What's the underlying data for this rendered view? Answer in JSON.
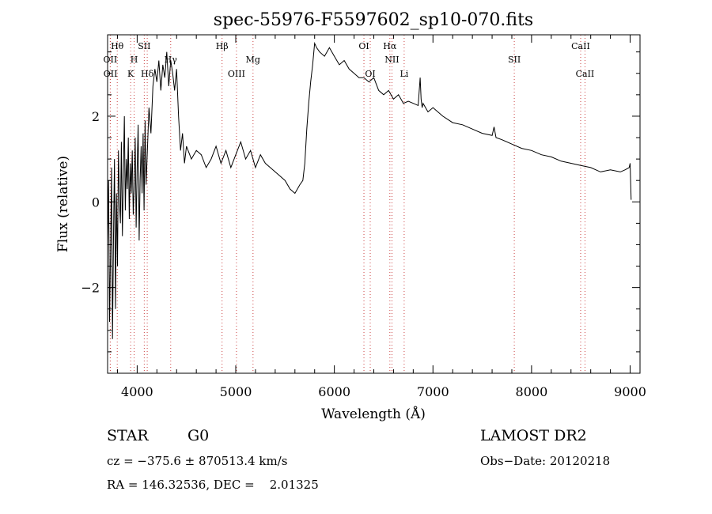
{
  "chart_data": {
    "type": "line",
    "title": "spec-55976-F5597602_sp10-070.fits",
    "xlabel": "Wavelength (Å)",
    "ylabel": "Flux (relative)",
    "xlim": [
      3700,
      9100
    ],
    "ylim": [
      -4.0,
      3.9
    ],
    "x_ticks": [
      4000,
      5000,
      6000,
      7000,
      8000,
      9000
    ],
    "y_ticks": [
      -2,
      0,
      2
    ],
    "grid": false,
    "legend": "none",
    "line_color": "#000000",
    "marker_color": "#cc4444",
    "spectral_lines": [
      {
        "label": "Hθ",
        "wavelength": 3798,
        "row": 0
      },
      {
        "label": "OII",
        "wavelength": 3727,
        "row": 1
      },
      {
        "label": "OII",
        "wavelength": 3729,
        "row": 2
      },
      {
        "label": "SII",
        "wavelength": 4072,
        "row": 0
      },
      {
        "label": "H",
        "wavelength": 3969,
        "row": 1
      },
      {
        "label": "K",
        "wavelength": 3934,
        "row": 2
      },
      {
        "label": "Hδ",
        "wavelength": 4102,
        "row": 2
      },
      {
        "label": "Hγ",
        "wavelength": 4340,
        "row": 1
      },
      {
        "label": "Hβ",
        "wavelength": 4861,
        "row": 0
      },
      {
        "label": "Mg",
        "wavelength": 5175,
        "row": 1
      },
      {
        "label": "OIII",
        "wavelength": 5007,
        "row": 2
      },
      {
        "label": "OI",
        "wavelength": 6300,
        "row": 0
      },
      {
        "label": "OI",
        "wavelength": 6364,
        "row": 2
      },
      {
        "label": "Hα",
        "wavelength": 6563,
        "row": 0
      },
      {
        "label": "NII",
        "wavelength": 6584,
        "row": 1
      },
      {
        "label": "Li",
        "wavelength": 6708,
        "row": 2
      },
      {
        "label": "SII",
        "wavelength": 7825,
        "row": 1
      },
      {
        "label": "CaII",
        "wavelength": 8498,
        "row": 0
      },
      {
        "label": "CaII",
        "wavelength": 8542,
        "row": 2
      }
    ],
    "series": [
      {
        "x": [
          3700,
          3710,
          3720,
          3730,
          3740,
          3750,
          3760,
          3770,
          3780,
          3790,
          3800,
          3810,
          3820,
          3830,
          3840,
          3850,
          3860,
          3870,
          3880,
          3890,
          3900,
          3910,
          3920,
          3930,
          3940,
          3950,
          3960,
          3970,
          3980,
          3990,
          4000,
          4010,
          4020,
          4030,
          4040,
          4050,
          4060,
          4070,
          4080,
          4090,
          4100,
          4120,
          4140,
          4160,
          4180,
          4200,
          4220,
          4240,
          4260,
          4280,
          4300,
          4320,
          4340,
          4360,
          4380,
          4400,
          4420,
          4440,
          4460,
          4480,
          4500,
          4550,
          4600,
          4650,
          4700,
          4750,
          4800,
          4850,
          4900,
          4950,
          5000,
          5050,
          5100,
          5150,
          5200,
          5250,
          5300,
          5350,
          5400,
          5450,
          5500,
          5550,
          5600,
          5650,
          5680,
          5700,
          5720,
          5740,
          5760,
          5780,
          5800,
          5820,
          5850,
          5900,
          5950,
          6000,
          6050,
          6100,
          6150,
          6200,
          6250,
          6300,
          6350,
          6400,
          6450,
          6500,
          6550,
          6600,
          6650,
          6700,
          6750,
          6800,
          6850,
          6870,
          6880,
          6890,
          6900,
          6950,
          7000,
          7100,
          7200,
          7300,
          7400,
          7500,
          7600,
          7620,
          7640,
          7700,
          7800,
          7900,
          8000,
          8100,
          8200,
          8300,
          8400,
          8500,
          8600,
          8700,
          8800,
          8900,
          8950,
          8990,
          9000,
          9010
        ],
        "y": [
          -1.0,
          0.5,
          -2.8,
          -1.2,
          0.8,
          -3.2,
          -0.8,
          1.0,
          -2.5,
          0.2,
          -1.5,
          1.2,
          0.0,
          -0.5,
          1.4,
          -0.8,
          0.6,
          2.0,
          -0.2,
          1.0,
          0.3,
          1.5,
          -0.4,
          0.9,
          0.2,
          1.2,
          -0.3,
          0.4,
          1.5,
          -0.6,
          0.8,
          1.8,
          -0.9,
          0.5,
          1.3,
          0.2,
          1.6,
          -0.2,
          1.9,
          0.4,
          1.0,
          2.2,
          1.6,
          2.7,
          3.1,
          2.8,
          3.3,
          2.6,
          3.2,
          2.9,
          3.5,
          2.7,
          3.3,
          3.0,
          2.6,
          3.1,
          2.0,
          1.2,
          1.6,
          0.9,
          1.3,
          1.0,
          1.2,
          1.1,
          0.8,
          1.0,
          1.3,
          0.9,
          1.2,
          0.8,
          1.1,
          1.4,
          1.0,
          1.2,
          0.8,
          1.1,
          0.9,
          0.8,
          0.7,
          0.6,
          0.5,
          0.3,
          0.2,
          0.4,
          0.5,
          0.9,
          1.7,
          2.3,
          2.8,
          3.2,
          3.7,
          3.6,
          3.5,
          3.4,
          3.6,
          3.4,
          3.2,
          3.3,
          3.1,
          3.0,
          2.9,
          2.9,
          2.8,
          2.9,
          2.6,
          2.5,
          2.6,
          2.4,
          2.5,
          2.3,
          2.35,
          2.3,
          2.25,
          2.9,
          2.4,
          2.2,
          2.3,
          2.1,
          2.2,
          2.0,
          1.85,
          1.8,
          1.7,
          1.6,
          1.55,
          1.75,
          1.5,
          1.45,
          1.35,
          1.25,
          1.2,
          1.1,
          1.05,
          0.95,
          0.9,
          0.85,
          0.8,
          0.7,
          0.75,
          0.7,
          0.75,
          0.8,
          0.9,
          0.05
        ]
      }
    ]
  },
  "info": {
    "class_label": "STAR",
    "subclass": "G0",
    "survey": "LAMOST DR2",
    "cz_line": "cz = −375.6 ± 870513.4 km/s",
    "obs_date": "Obs−Date: 20120218",
    "radec_line": "RA = 146.32536, DEC =    2.01325"
  }
}
